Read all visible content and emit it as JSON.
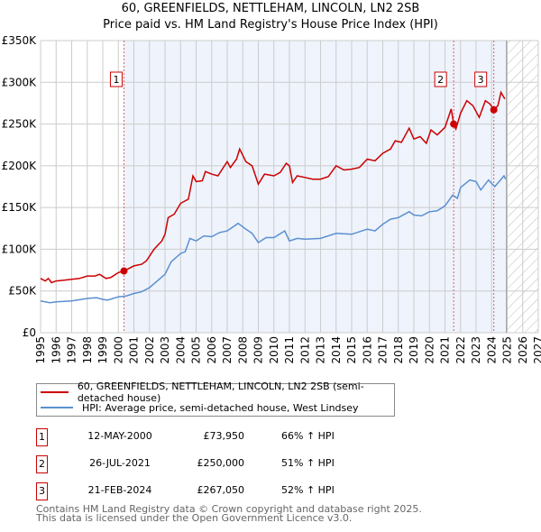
{
  "title_line1": "60, GREENFIELDS, NETTLEHAM, LINCOLN, LN2 2SB",
  "title_line2": "Price paid vs. HM Land Registry's House Price Index (HPI)",
  "chart_data": {
    "type": "line",
    "title": "60, GREENFIELDS, NETTLEHAM, LINCOLN, LN2 2SB — Price paid vs. HM Land Registry's House Price Index (HPI)",
    "xlim": [
      1995,
      2027
    ],
    "ylim": [
      0,
      350000
    ],
    "x_ticks": [
      "1995",
      "1996",
      "1997",
      "1998",
      "1999",
      "2000",
      "2001",
      "2002",
      "2003",
      "2004",
      "2005",
      "2006",
      "2007",
      "2008",
      "2009",
      "2010",
      "2011",
      "2012",
      "2013",
      "2014",
      "2015",
      "2016",
      "2017",
      "2018",
      "2019",
      "2020",
      "2021",
      "2022",
      "2023",
      "2024",
      "2025",
      "2026",
      "2027"
    ],
    "y_ticks": [
      {
        "v": 0,
        "label": "£0"
      },
      {
        "v": 50000,
        "label": "£50K"
      },
      {
        "v": 100000,
        "label": "£100K"
      },
      {
        "v": 150000,
        "label": "£150K"
      },
      {
        "v": 200000,
        "label": "£200K"
      },
      {
        "v": 250000,
        "label": "£250K"
      },
      {
        "v": 300000,
        "label": "£300K"
      },
      {
        "v": 350000,
        "label": "£350K"
      }
    ],
    "grid": true,
    "shaded_range": [
      2000.36,
      2024.9
    ],
    "forecast_hatch_from": 2024.95,
    "colors": {
      "price": "#cc0000",
      "hpi": "#5b8fd0",
      "shade": "#eef3fc",
      "grid": "#cccccc"
    },
    "series": [
      {
        "name": "60, GREENFIELDS, NETTLEHAM, LINCOLN, LN2 2SB (semi-detached house)",
        "color": "#cc0000",
        "points": [
          [
            1995,
            65
          ],
          [
            1995.3,
            62
          ],
          [
            1995.5,
            65
          ],
          [
            1995.7,
            60
          ],
          [
            1996,
            62
          ],
          [
            1996.5,
            63
          ],
          [
            1997,
            64
          ],
          [
            1997.5,
            65
          ],
          [
            1998,
            68
          ],
          [
            1998.5,
            68
          ],
          [
            1998.8,
            70
          ],
          [
            1999.2,
            65
          ],
          [
            1999.5,
            66
          ],
          [
            2000,
            72
          ],
          [
            2000.36,
            73.95
          ],
          [
            2001,
            80
          ],
          [
            2001.5,
            82
          ],
          [
            2001.8,
            86
          ],
          [
            2002.3,
            100
          ],
          [
            2002.8,
            110
          ],
          [
            2003,
            118
          ],
          [
            2003.2,
            138
          ],
          [
            2003.6,
            142
          ],
          [
            2004,
            155
          ],
          [
            2004.5,
            160
          ],
          [
            2004.8,
            188
          ],
          [
            2005,
            181
          ],
          [
            2005.4,
            182
          ],
          [
            2005.6,
            193
          ],
          [
            2006,
            190
          ],
          [
            2006.4,
            188
          ],
          [
            2007,
            205
          ],
          [
            2007.2,
            198
          ],
          [
            2007.6,
            208
          ],
          [
            2007.8,
            220
          ],
          [
            2008.2,
            205
          ],
          [
            2008.6,
            200
          ],
          [
            2009,
            178
          ],
          [
            2009.4,
            190
          ],
          [
            2010,
            188
          ],
          [
            2010.4,
            192
          ],
          [
            2010.8,
            203
          ],
          [
            2011,
            200
          ],
          [
            2011.2,
            180
          ],
          [
            2011.5,
            188
          ],
          [
            2012,
            186
          ],
          [
            2012.5,
            184
          ],
          [
            2013,
            184
          ],
          [
            2013.5,
            187
          ],
          [
            2014,
            200
          ],
          [
            2014.5,
            195
          ],
          [
            2015,
            196
          ],
          [
            2015.5,
            198
          ],
          [
            2016,
            208
          ],
          [
            2016.5,
            206
          ],
          [
            2017,
            215
          ],
          [
            2017.5,
            220
          ],
          [
            2017.8,
            230
          ],
          [
            2018.2,
            228
          ],
          [
            2018.7,
            245
          ],
          [
            2019,
            232
          ],
          [
            2019.4,
            235
          ],
          [
            2019.8,
            227
          ],
          [
            2020.1,
            243
          ],
          [
            2020.5,
            237
          ],
          [
            2021,
            246
          ],
          [
            2021.4,
            268
          ],
          [
            2021.56,
            250
          ],
          [
            2021.7,
            244
          ],
          [
            2022,
            263
          ],
          [
            2022.4,
            278
          ],
          [
            2022.8,
            272
          ],
          [
            2023.2,
            258
          ],
          [
            2023.6,
            278
          ],
          [
            2023.9,
            274
          ],
          [
            2024.14,
            267
          ],
          [
            2024.4,
            272
          ],
          [
            2024.6,
            288
          ],
          [
            2024.85,
            280
          ]
        ]
      },
      {
        "name": "HPI: Average price, semi-detached house, West Lindsey",
        "color": "#5b8fd0",
        "points": [
          [
            1995,
            38
          ],
          [
            1995.6,
            36
          ],
          [
            1996,
            37
          ],
          [
            1997,
            38
          ],
          [
            1998,
            41
          ],
          [
            1998.6,
            42
          ],
          [
            1999,
            40
          ],
          [
            1999.3,
            39
          ],
          [
            2000,
            43
          ],
          [
            2000.5,
            44
          ],
          [
            2001,
            47
          ],
          [
            2001.5,
            49
          ],
          [
            2002,
            54
          ],
          [
            2002.5,
            62
          ],
          [
            2003,
            70
          ],
          [
            2003.4,
            85
          ],
          [
            2004,
            95
          ],
          [
            2004.3,
            97
          ],
          [
            2004.6,
            113
          ],
          [
            2005,
            110
          ],
          [
            2005.5,
            116
          ],
          [
            2006,
            115
          ],
          [
            2006.5,
            120
          ],
          [
            2007,
            122
          ],
          [
            2007.7,
            131
          ],
          [
            2008.2,
            124
          ],
          [
            2008.6,
            119
          ],
          [
            2009,
            108
          ],
          [
            2009.5,
            114
          ],
          [
            2010,
            114
          ],
          [
            2010.7,
            122
          ],
          [
            2011,
            110
          ],
          [
            2011.5,
            113
          ],
          [
            2012,
            112
          ],
          [
            2013,
            113
          ],
          [
            2014,
            119
          ],
          [
            2015,
            118
          ],
          [
            2016,
            124
          ],
          [
            2016.5,
            122
          ],
          [
            2017,
            130
          ],
          [
            2017.5,
            136
          ],
          [
            2018,
            138
          ],
          [
            2018.7,
            145
          ],
          [
            2019,
            141
          ],
          [
            2019.5,
            140
          ],
          [
            2020,
            145
          ],
          [
            2020.5,
            146
          ],
          [
            2021,
            152
          ],
          [
            2021.5,
            165
          ],
          [
            2021.8,
            161
          ],
          [
            2022,
            174
          ],
          [
            2022.6,
            183
          ],
          [
            2023,
            181
          ],
          [
            2023.3,
            171
          ],
          [
            2023.8,
            183
          ],
          [
            2024.2,
            175
          ],
          [
            2024.8,
            188
          ],
          [
            2024.9,
            184
          ]
        ]
      }
    ],
    "sales": [
      {
        "id": "1",
        "x": 2000.36,
        "value": 73950
      },
      {
        "id": "2",
        "x": 2021.56,
        "value": 250000
      },
      {
        "id": "3",
        "x": 2024.14,
        "value": 267050
      }
    ]
  },
  "legend": {
    "price_label": "60, GREENFIELDS, NETTLEHAM, LINCOLN, LN2 2SB (semi-detached house)",
    "hpi_label": "HPI: Average price, semi-detached house, West Lindsey"
  },
  "transactions": [
    {
      "num": "1",
      "date": "12-MAY-2000",
      "price": "£73,950",
      "hpi": "66% ↑ HPI"
    },
    {
      "num": "2",
      "date": "26-JUL-2021",
      "price": "£250,000",
      "hpi": "51% ↑ HPI"
    },
    {
      "num": "3",
      "date": "21-FEB-2024",
      "price": "£267,050",
      "hpi": "52% ↑ HPI"
    }
  ],
  "footer": {
    "line1": "Contains HM Land Registry data © Crown copyright and database right 2025.",
    "line2": "This data is licensed under the Open Government Licence v3.0."
  }
}
